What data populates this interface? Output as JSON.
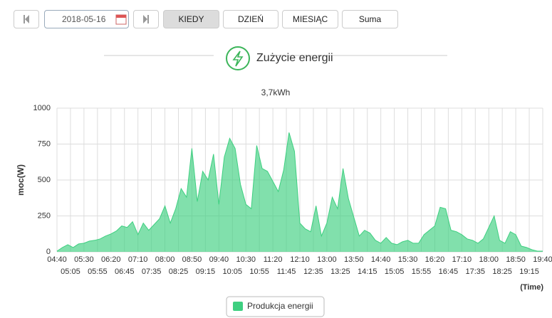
{
  "toolbar": {
    "date": "2018-05-16",
    "buttons": [
      "KIEDY",
      "DZIEŃ",
      "MIESIĄC",
      "Suma"
    ]
  },
  "header": {
    "title": "Zużycie energii"
  },
  "chart_data": {
    "type": "area",
    "title": "3,7kWh",
    "y_label": "moc(W)",
    "x_label": "(Time)",
    "x": [
      "04:40",
      "04:50",
      "05:00",
      "05:10",
      "05:20",
      "05:30",
      "05:40",
      "05:50",
      "06:00",
      "06:10",
      "06:20",
      "06:30",
      "06:40",
      "06:50",
      "07:00",
      "07:10",
      "07:20",
      "07:30",
      "07:40",
      "07:50",
      "08:00",
      "08:10",
      "08:20",
      "08:30",
      "08:40",
      "08:50",
      "09:00",
      "09:10",
      "09:20",
      "09:30",
      "09:40",
      "09:50",
      "10:00",
      "10:10",
      "10:20",
      "10:30",
      "10:40",
      "10:50",
      "11:00",
      "11:10",
      "11:20",
      "11:30",
      "11:40",
      "11:50",
      "12:00",
      "12:10",
      "12:20",
      "12:30",
      "12:40",
      "12:50",
      "13:00",
      "13:10",
      "13:20",
      "13:30",
      "13:40",
      "13:50",
      "14:00",
      "14:10",
      "14:20",
      "14:30",
      "14:40",
      "14:50",
      "15:00",
      "15:10",
      "15:20",
      "15:30",
      "15:40",
      "15:50",
      "16:00",
      "16:10",
      "16:20",
      "16:30",
      "16:40",
      "16:50",
      "17:00",
      "17:10",
      "17:20",
      "17:30",
      "17:40",
      "17:50",
      "18:00",
      "18:10",
      "18:20",
      "18:30",
      "18:40",
      "18:50",
      "19:00",
      "19:10",
      "19:20",
      "19:30",
      "19:40"
    ],
    "series": [
      {
        "name": "Produkcja energii",
        "color": "#3ecf80",
        "values": [
          5,
          30,
          50,
          30,
          55,
          60,
          75,
          80,
          90,
          110,
          125,
          145,
          180,
          170,
          210,
          120,
          200,
          150,
          190,
          230,
          320,
          200,
          300,
          440,
          380,
          720,
          350,
          560,
          500,
          680,
          330,
          660,
          790,
          720,
          470,
          330,
          300,
          740,
          580,
          560,
          490,
          420,
          570,
          830,
          700,
          200,
          160,
          140,
          320,
          110,
          200,
          380,
          300,
          580,
          370,
          240,
          110,
          150,
          130,
          80,
          60,
          100,
          60,
          50,
          70,
          80,
          60,
          60,
          120,
          150,
          180,
          310,
          300,
          150,
          140,
          120,
          90,
          80,
          60,
          90,
          170,
          250,
          80,
          60,
          140,
          120,
          40,
          30,
          15,
          5,
          5
        ]
      }
    ],
    "ylim": [
      0,
      1000
    ],
    "yticks": [
      0,
      250,
      500,
      750,
      1000
    ],
    "xlim": [
      "04:40",
      "19:40"
    ],
    "xticks": [
      "04:40",
      "05:05",
      "05:30",
      "05:55",
      "06:20",
      "06:45",
      "07:10",
      "07:35",
      "08:00",
      "08:25",
      "08:50",
      "09:15",
      "09:40",
      "10:05",
      "10:30",
      "10:55",
      "11:20",
      "11:45",
      "12:10",
      "12:35",
      "13:00",
      "13:25",
      "13:50",
      "14:15",
      "14:40",
      "15:05",
      "15:30",
      "15:55",
      "16:20",
      "16:45",
      "17:10",
      "17:35",
      "18:00",
      "18:25",
      "18:50",
      "19:15",
      "19:40"
    ],
    "grid": true
  }
}
